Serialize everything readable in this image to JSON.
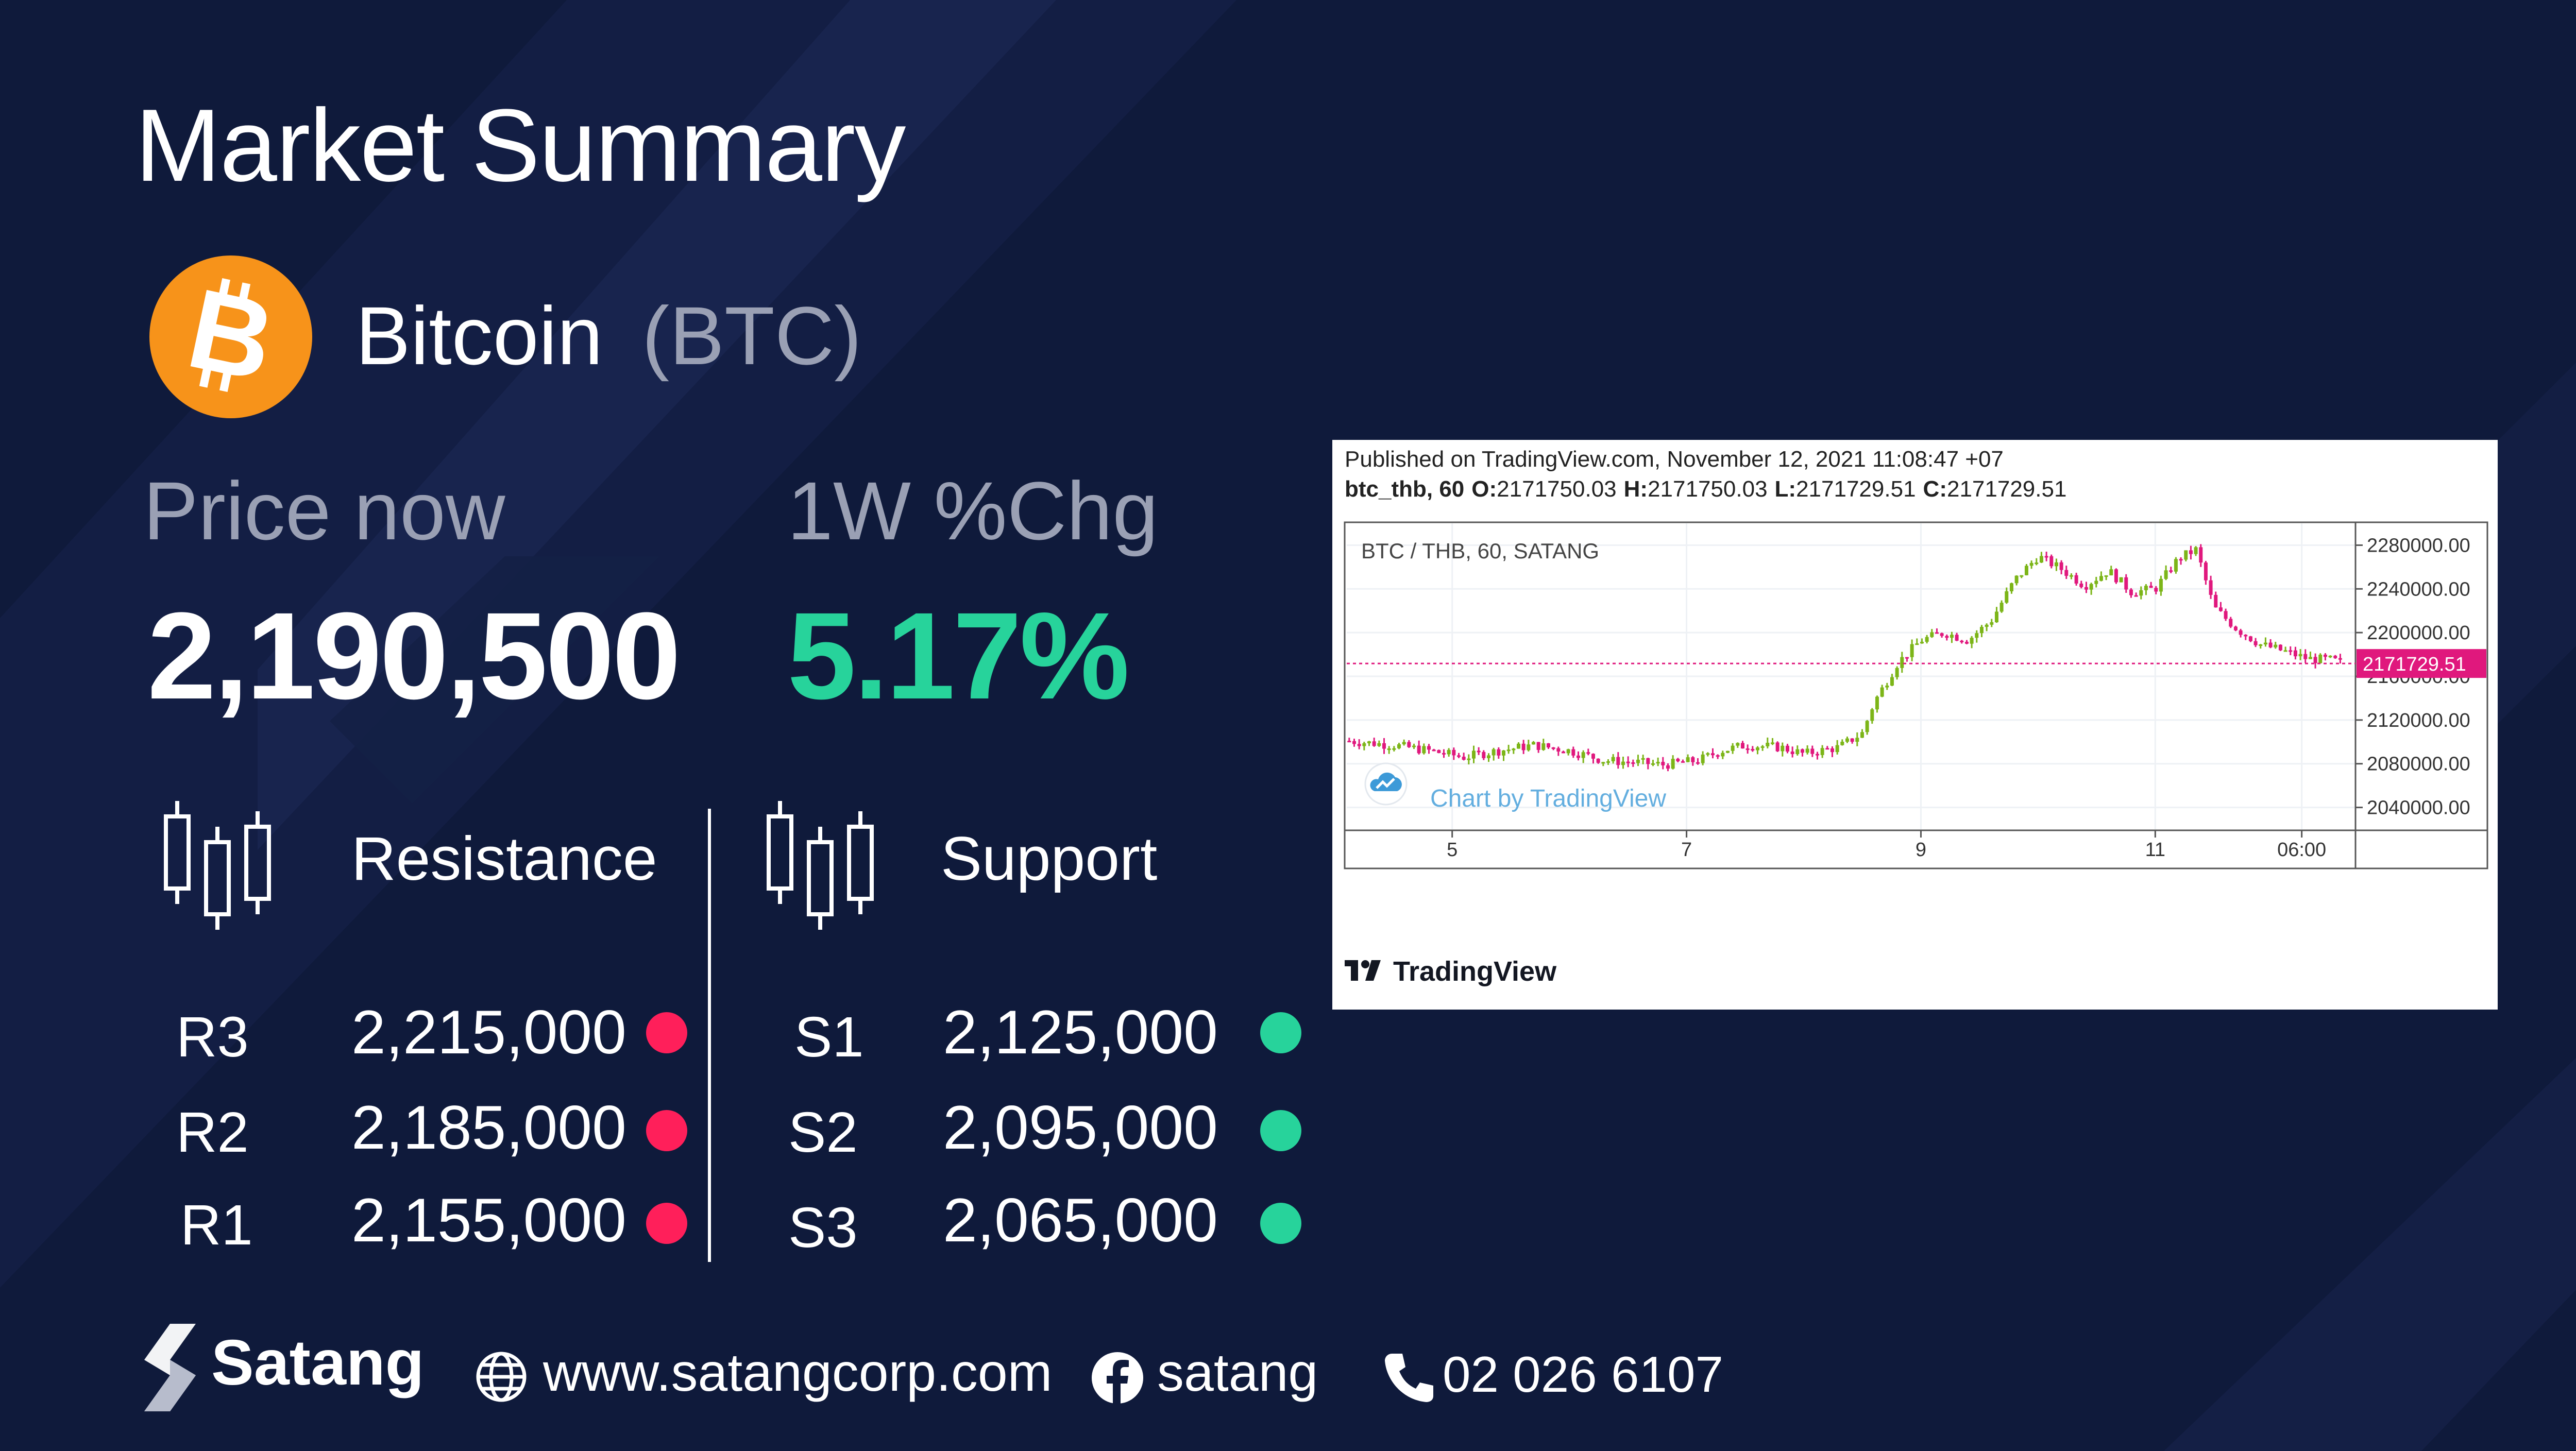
{
  "page": {
    "title": "Market Summary",
    "accent_green": "#27d39b",
    "accent_red": "#ff1f5a",
    "background": "#0f1a3b"
  },
  "coin": {
    "name": "Bitcoin",
    "ticker": "(BTC)",
    "icon": "bitcoin-icon",
    "icon_color": "#f7931a"
  },
  "metrics": {
    "price_label": "Price now",
    "price_value": "2,190,500",
    "change_label": "1W %Chg",
    "change_value": "5.17%"
  },
  "levels": {
    "resistance_label": "Resistance",
    "support_label": "Support",
    "resistance": [
      {
        "name": "R3",
        "value": "2,215,000"
      },
      {
        "name": "R2",
        "value": "2,185,000"
      },
      {
        "name": "R1",
        "value": "2,155,000"
      }
    ],
    "support": [
      {
        "name": "S1",
        "value": "2,125,000"
      },
      {
        "name": "S2",
        "value": "2,095,000"
      },
      {
        "name": "S3",
        "value": "2,065,000"
      }
    ]
  },
  "chart_data": {
    "type": "candlestick",
    "published": "Published on TradingView.com, November 12, 2021 11:08:47 +07",
    "symbol_line": {
      "symbol": "btc_thb, 60",
      "o_label": "O:",
      "o_value": "2171750.03",
      "h_label": "H:",
      "h_value": "2171750.03",
      "l_label": "L:",
      "l_value": "2171729.51",
      "c_label": "C:",
      "c_value": "2171729.51"
    },
    "title": "BTC / THB, 60, SATANG",
    "watermark": "Chart by TradingView",
    "logo_text": "TradingView",
    "current_price": "2171729.51",
    "ylim": [
      2020000,
      2300000
    ],
    "y_ticks": [
      "2280000.00",
      "2240000.00",
      "2200000.00",
      "2160000.00",
      "2120000.00",
      "2080000.00",
      "2040000.00"
    ],
    "y_tick_values": [
      2280000,
      2240000,
      2200000,
      2160000,
      2120000,
      2080000,
      2040000
    ],
    "x_ticks": [
      "5",
      "7",
      "9",
      "11",
      "06:00"
    ],
    "x_tick_days": [
      0.5,
      2.5,
      4.5,
      6.5,
      7.75
    ],
    "x_range_days": [
      -0.4,
      8.2
    ],
    "up_color": "#7cb518",
    "down_color": "#e0187d",
    "trend": [
      [
        -0.4,
        2101000
      ],
      [
        0.0,
        2097000
      ],
      [
        0.3,
        2092000
      ],
      [
        0.6,
        2086000
      ],
      [
        0.9,
        2092000
      ],
      [
        1.2,
        2097000
      ],
      [
        1.5,
        2092000
      ],
      [
        1.8,
        2083000
      ],
      [
        2.1,
        2081000
      ],
      [
        2.3,
        2079000
      ],
      [
        2.6,
        2083000
      ],
      [
        2.8,
        2092000
      ],
      [
        3.0,
        2097000
      ],
      [
        3.3,
        2095000
      ],
      [
        3.5,
        2089000
      ],
      [
        3.8,
        2095000
      ],
      [
        4.0,
        2108000
      ],
      [
        4.1,
        2136000
      ],
      [
        4.3,
        2172000
      ],
      [
        4.5,
        2193000
      ],
      [
        4.7,
        2200000
      ],
      [
        4.9,
        2193000
      ],
      [
        5.1,
        2211000
      ],
      [
        5.3,
        2248000
      ],
      [
        5.5,
        2270000
      ],
      [
        5.7,
        2258000
      ],
      [
        5.9,
        2243000
      ],
      [
        6.1,
        2257000
      ],
      [
        6.3,
        2237000
      ],
      [
        6.5,
        2240000
      ],
      [
        6.7,
        2268000
      ],
      [
        6.85,
        2276000
      ],
      [
        7.0,
        2223000
      ],
      [
        7.2,
        2203000
      ],
      [
        7.4,
        2189000
      ],
      [
        7.6,
        2183000
      ],
      [
        7.8,
        2176000
      ],
      [
        8.0,
        2175000
      ],
      [
        8.1,
        2172000
      ]
    ]
  },
  "footer": {
    "brand": "Satang",
    "website": "www.satangcorp.com",
    "facebook": "satang",
    "phone": "02 026 6107"
  }
}
